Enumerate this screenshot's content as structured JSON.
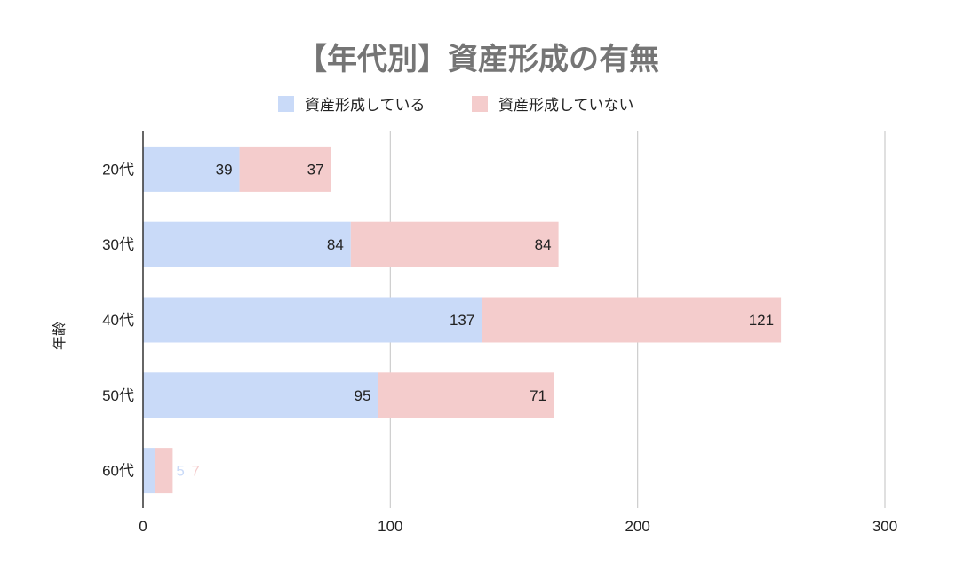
{
  "chart_data": {
    "type": "bar",
    "orientation": "horizontal",
    "stacked": true,
    "title": "【年代別】資産形成の有無",
    "xlabel": "",
    "ylabel": "年齢",
    "categories": [
      "20代",
      "30代",
      "40代",
      "50代",
      "60代"
    ],
    "series": [
      {
        "name": "資産形成している",
        "color": "#c9daf8",
        "values": [
          39,
          84,
          137,
          95,
          5
        ]
      },
      {
        "name": "資産形成していない",
        "color": "#f4cccc",
        "values": [
          37,
          84,
          121,
          71,
          7
        ]
      }
    ],
    "xlim": [
      0,
      300
    ],
    "xticks": [
      0,
      100,
      200,
      300
    ],
    "grid": true,
    "legend_position": "top",
    "data_labels": true
  }
}
